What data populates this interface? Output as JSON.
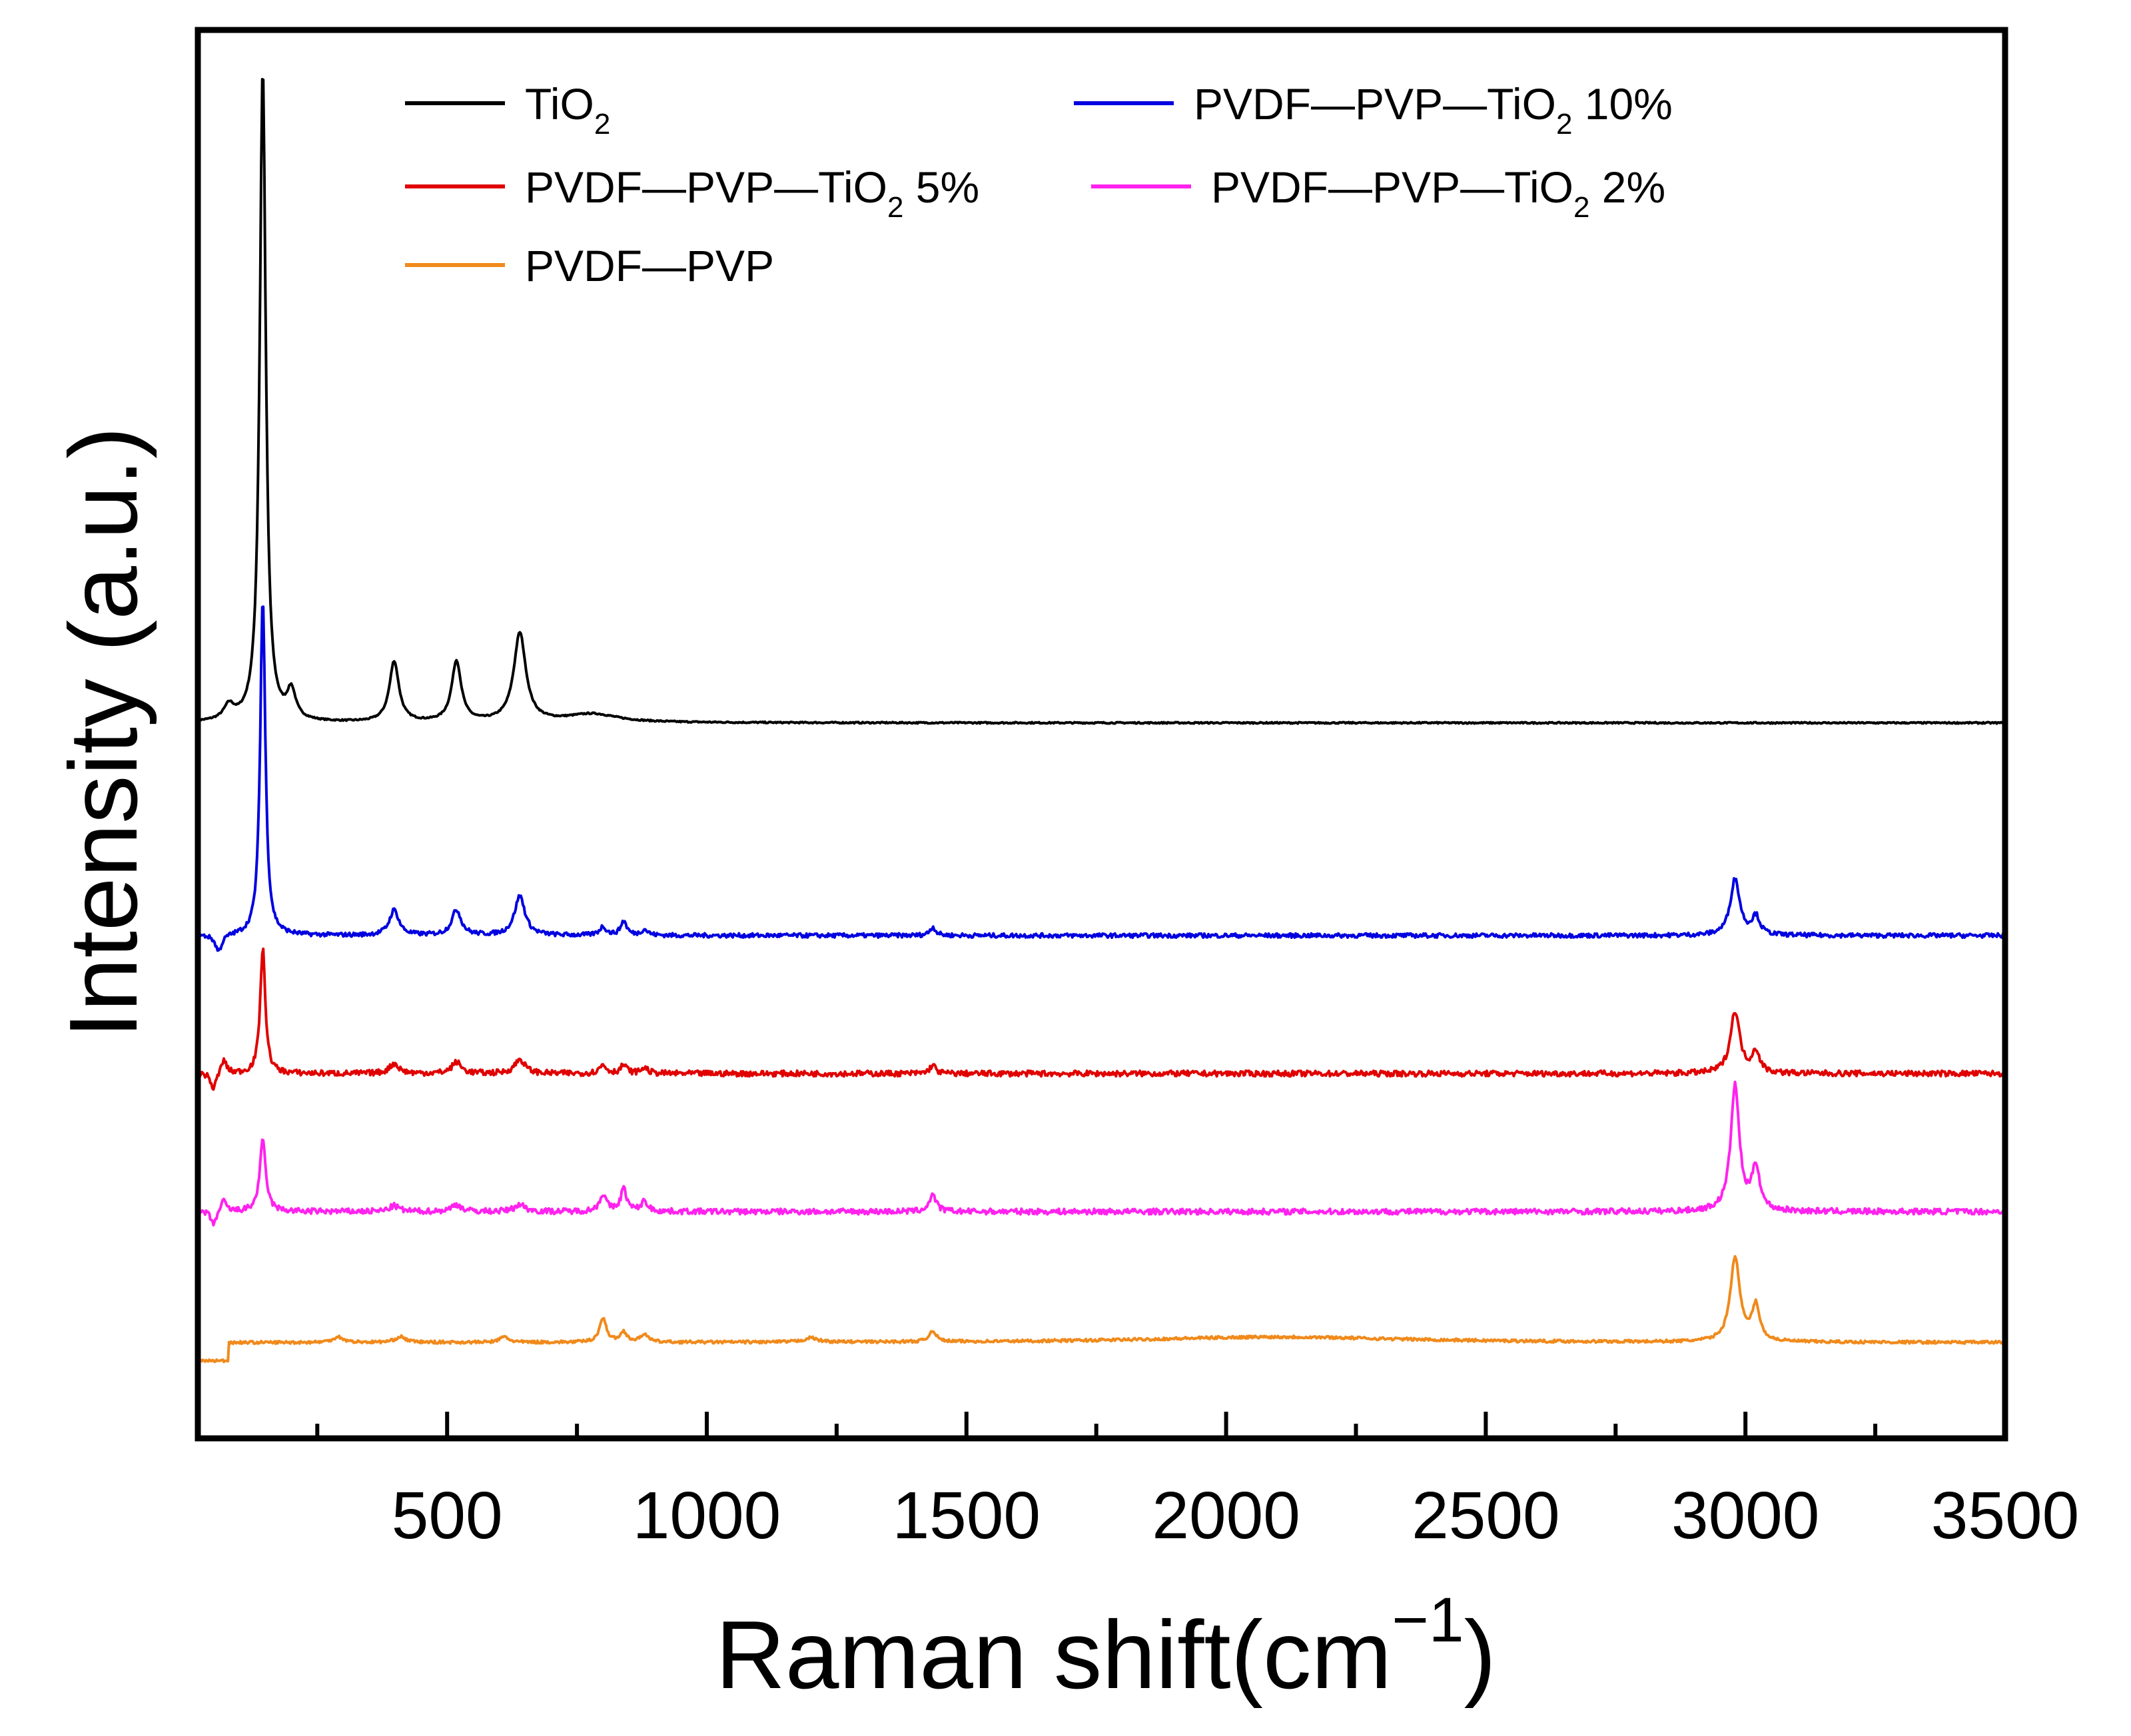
{
  "chart_data": {
    "type": "line",
    "title": "",
    "xlabel": "Raman shift(cm",
    "xlabel_sup": "−1",
    "xlabel_close": ")",
    "ylabel": "Intensity (a.u.)",
    "xlim": [
      20,
      3500
    ],
    "ylim": [
      0,
      100
    ],
    "xticks": [
      500,
      1000,
      1500,
      2000,
      2500,
      3000,
      3500
    ],
    "xticks_minor": [
      250,
      750,
      1250,
      1750,
      2250,
      2750,
      3250
    ],
    "yticks_shown": false,
    "grid": false,
    "legend_placement": "top",
    "series": [
      {
        "name": "TiO",
        "sub": "2",
        "suffix": "",
        "color": "#000000",
        "baseline": 50.8,
        "noise": 0.05,
        "peaks": [
          [
            145,
            46.5,
            7
          ],
          [
            80,
            1.0,
            12
          ],
          [
            200,
            2.0,
            10
          ],
          [
            398,
            4.3,
            11
          ],
          [
            518,
            4.3,
            11
          ],
          [
            640,
            6.3,
            14
          ],
          [
            780,
            0.6,
            60
          ]
        ]
      },
      {
        "name": "PVDF—PVP—TiO",
        "sub": "2",
        "suffix": " 10%",
        "color": "#0000e0",
        "baseline": 35.7,
        "noise": 0.15,
        "peaks": [
          [
            145,
            24,
            6
          ],
          [
            60,
            -1.2,
            8
          ],
          [
            398,
            1.8,
            11
          ],
          [
            518,
            1.8,
            11
          ],
          [
            640,
            2.8,
            12
          ],
          [
            800,
            0.6,
            8
          ],
          [
            840,
            1.0,
            7
          ],
          [
            880,
            0.4,
            8
          ],
          [
            1435,
            0.6,
            7
          ],
          [
            2980,
            4.0,
            11
          ],
          [
            3020,
            1.3,
            9
          ]
        ]
      },
      {
        "name": "PVDF—PVP—TiO",
        "sub": "2",
        "suffix": " 5%",
        "color": "#e00000",
        "baseline": 25.9,
        "noise": 0.2,
        "peaks": [
          [
            145,
            8.9,
            6
          ],
          [
            50,
            -1.2,
            6
          ],
          [
            70,
            1.0,
            6
          ],
          [
            398,
            0.7,
            11
          ],
          [
            518,
            0.8,
            11
          ],
          [
            640,
            1.0,
            12
          ],
          [
            800,
            0.6,
            8
          ],
          [
            840,
            0.6,
            7
          ],
          [
            880,
            0.4,
            8
          ],
          [
            1435,
            0.6,
            7
          ],
          [
            2980,
            4.4,
            11
          ],
          [
            3020,
            1.5,
            9
          ]
        ]
      },
      {
        "name": "PVDF—PVP—TiO",
        "sub": "2",
        "suffix": " 2%",
        "color": "#ff22ee",
        "baseline": 16.1,
        "noise": 0.2,
        "peaks": [
          [
            145,
            5.0,
            7
          ],
          [
            50,
            -1.0,
            6
          ],
          [
            70,
            0.8,
            6
          ],
          [
            398,
            0.4,
            11
          ],
          [
            518,
            0.5,
            11
          ],
          [
            640,
            0.5,
            12
          ],
          [
            800,
            1.2,
            8
          ],
          [
            840,
            1.6,
            7
          ],
          [
            880,
            0.7,
            8
          ],
          [
            1435,
            1.2,
            8
          ],
          [
            2980,
            8.9,
            10
          ],
          [
            3020,
            3.1,
            9
          ]
        ]
      },
      {
        "name": "PVDF—PVP",
        "sub": "",
        "suffix": "",
        "color": "#f08a1c",
        "baseline": 6.8,
        "noise": 0.1,
        "peaks": [
          [
            290,
            0.4,
            12
          ],
          [
            410,
            0.4,
            12
          ],
          [
            610,
            0.4,
            10
          ],
          [
            800,
            1.7,
            8
          ],
          [
            840,
            0.7,
            8
          ],
          [
            880,
            0.6,
            8
          ],
          [
            1200,
            0.3,
            15
          ],
          [
            1435,
            0.8,
            8
          ],
          [
            2100,
            0.4,
            300
          ],
          [
            2980,
            6.0,
            11
          ],
          [
            3020,
            2.5,
            9
          ]
        ]
      }
    ]
  }
}
